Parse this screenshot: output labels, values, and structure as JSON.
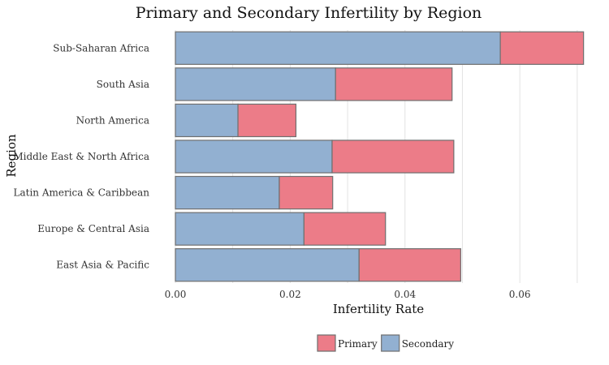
{
  "chart_data": {
    "type": "bar",
    "orientation": "horizontal",
    "stacked": true,
    "title": "Primary and Secondary Infertility by Region",
    "xlabel": "Infertility Rate",
    "ylabel": "Region",
    "xlim": [
      0,
      0.072
    ],
    "xticks": [
      0.0,
      0.02,
      0.04,
      0.06
    ],
    "xtick_labels": [
      "0.00",
      "0.02",
      "0.04",
      "0.06"
    ],
    "grid": true,
    "legend_position": "bottom",
    "categories": [
      "Sub-Saharan Africa",
      "South Asia",
      "North America",
      "Middle East & North Africa",
      "Latin America & Caribbean",
      "Europe & Central Asia",
      "East Asia & Pacific"
    ],
    "series": [
      {
        "name": "Secondary",
        "color": "#92b0d1",
        "values": [
          0.0566,
          0.0279,
          0.0109,
          0.0273,
          0.0181,
          0.0224,
          0.032
        ]
      },
      {
        "name": "Primary",
        "color": "#ec7c88",
        "values": [
          0.0145,
          0.0203,
          0.0101,
          0.0212,
          0.0093,
          0.0142,
          0.0177
        ]
      }
    ],
    "legend": [
      {
        "name": "Primary",
        "color": "#ec7c88"
      },
      {
        "name": "Secondary",
        "color": "#92b0d1"
      }
    ]
  }
}
